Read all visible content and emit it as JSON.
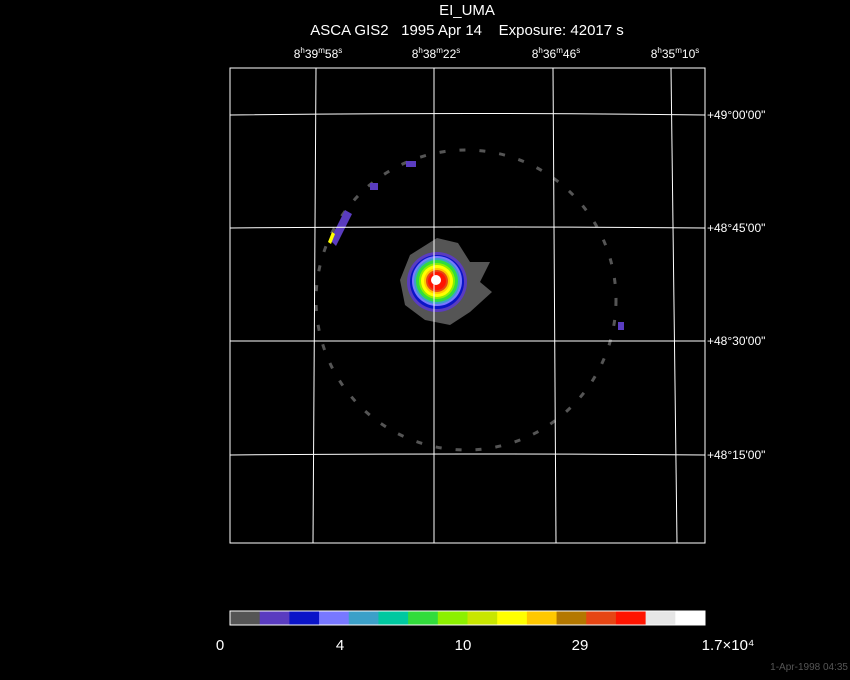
{
  "title": "EI_UMA",
  "subtitle": "ASCA GIS2   1995 Apr 14    Exposure: 42017 s",
  "ra_labels": [
    "8h39m58s",
    "8h38m22s",
    "8h36m46s",
    "8h35m10s"
  ],
  "dec_labels": [
    "+49°00'00\"",
    "+48°45'00\"",
    "+48°30'00\"",
    "+48°15'00\""
  ],
  "colorbar": {
    "colors": [
      "#555555",
      "#5a3cc0",
      "#0a14c8",
      "#7878ff",
      "#3ca0c8",
      "#00c8a0",
      "#32dc3c",
      "#8cf000",
      "#c8e600",
      "#ffff00",
      "#ffc800",
      "#b47800",
      "#e64614",
      "#ff1400",
      "#e6e6e6",
      "#ffffff"
    ],
    "labels": [
      "0",
      "4",
      "10",
      "29",
      "1.7×10⁴"
    ]
  },
  "timestamp": "1-Apr-1998 04:35"
}
